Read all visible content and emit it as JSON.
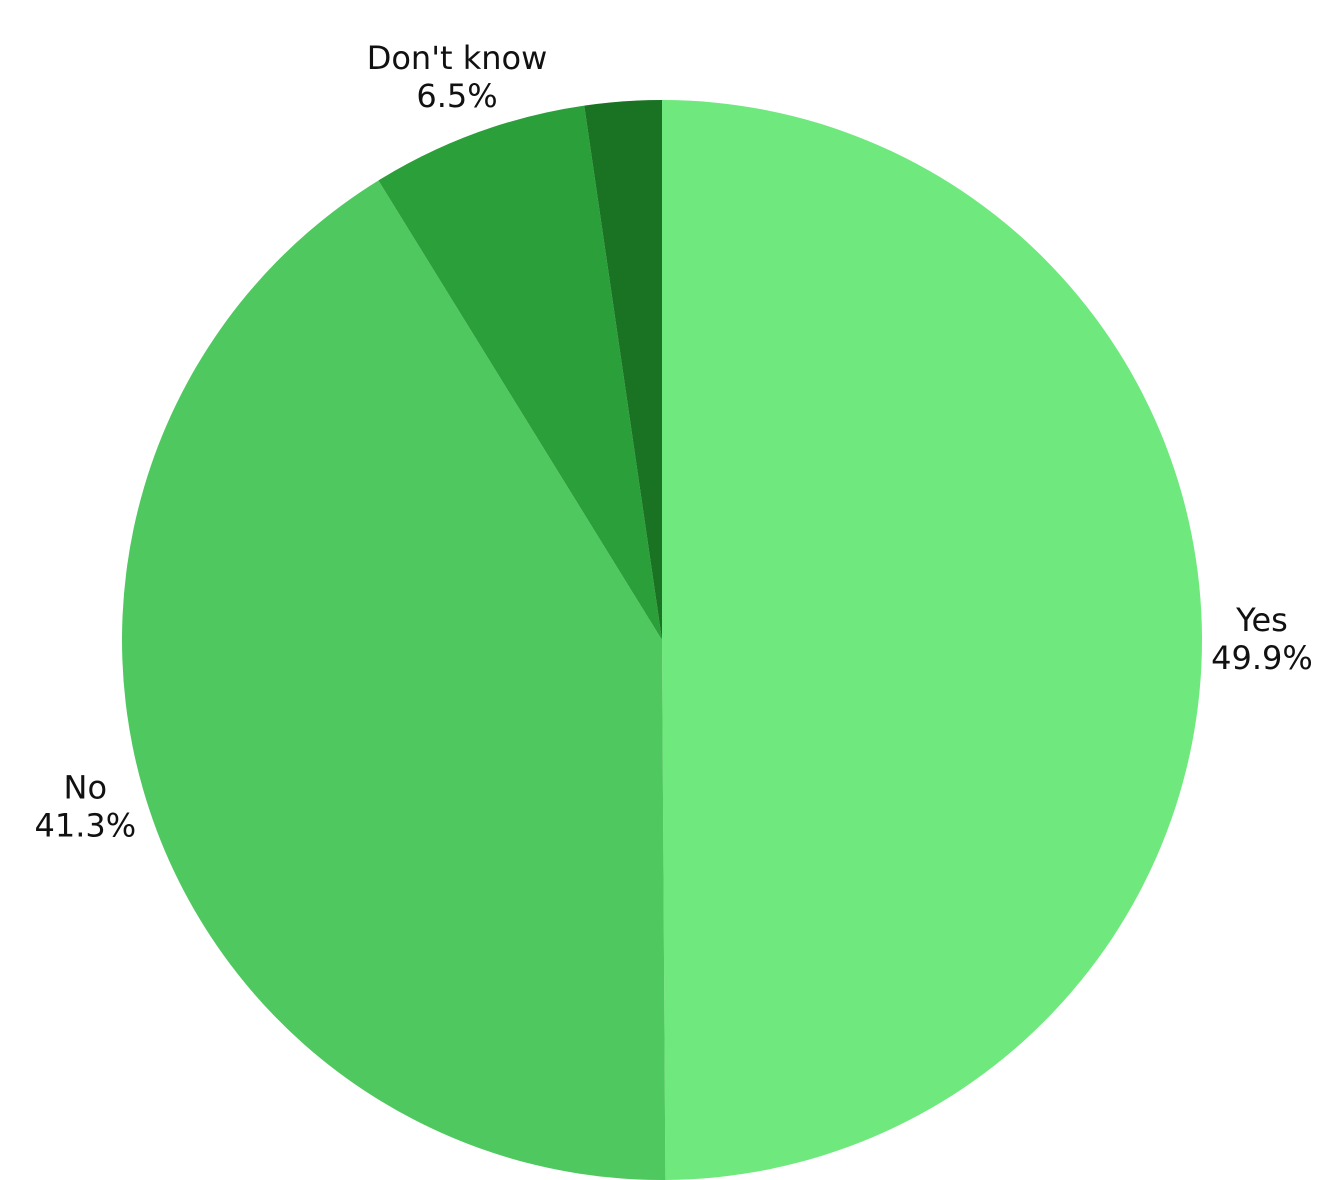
{
  "chart_data": {
    "type": "pie",
    "slices": [
      {
        "label": "Yes",
        "value": 49.9,
        "value_text": "49.9%",
        "color": "#6fe87d"
      },
      {
        "label": "No",
        "value": 41.3,
        "value_text": "41.3%",
        "color": "#4fc95f"
      },
      {
        "label": "Don't know",
        "value": 6.5,
        "value_text": "6.5%",
        "color": "#2b9f39"
      },
      {
        "label": "",
        "value": 2.3,
        "value_text": "",
        "color": "#1a7323"
      }
    ],
    "start": "top",
    "direction": "clockwise",
    "legend": "none"
  }
}
